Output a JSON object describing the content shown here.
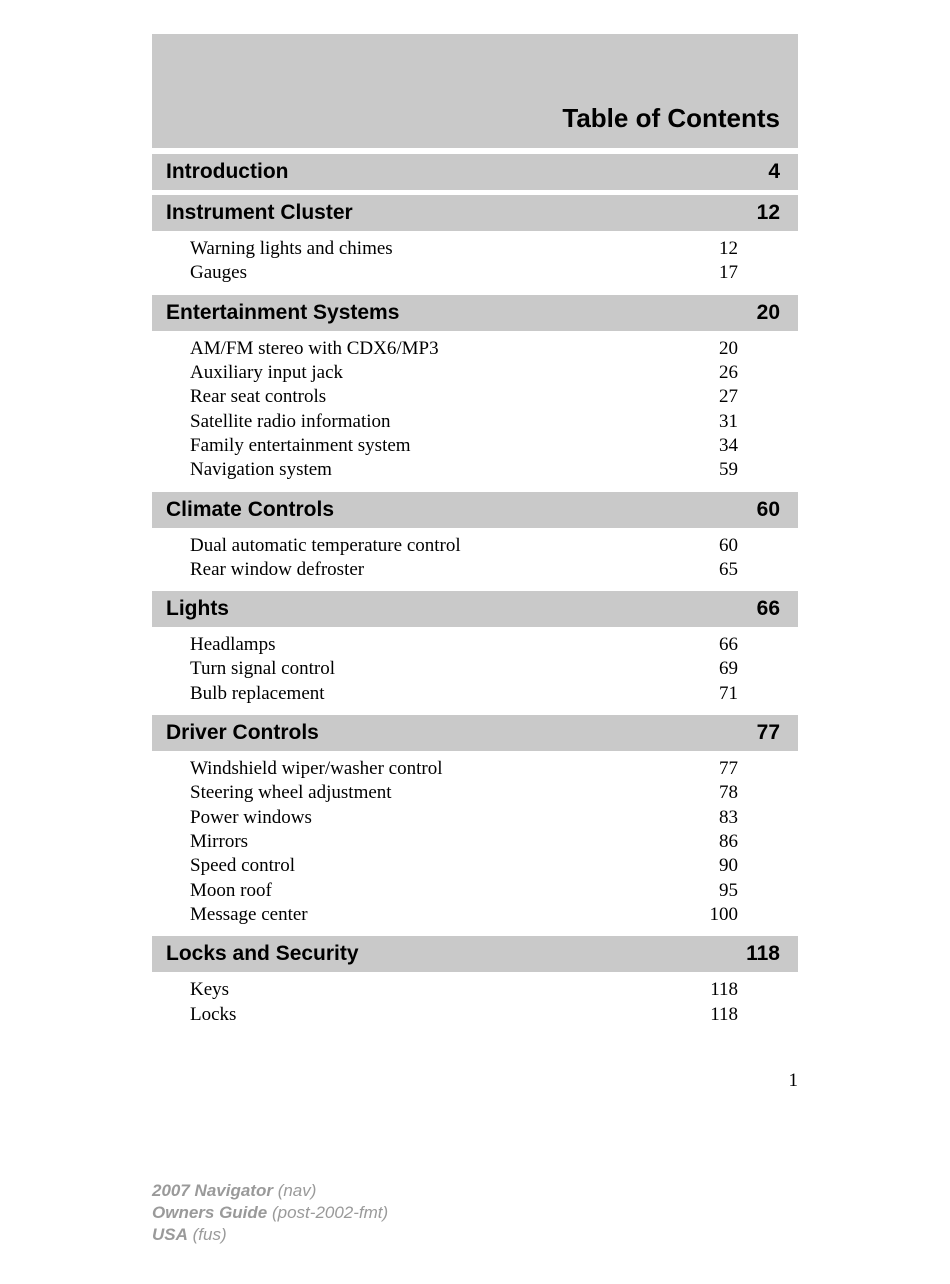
{
  "title": "Table of Contents",
  "page_number": "1",
  "colors": {
    "bar_bg": "#c9c9c9",
    "page_bg": "#ffffff",
    "text": "#000000",
    "footer_text": "#9a9a9a"
  },
  "sections": [
    {
      "title": "Introduction",
      "page": "4",
      "items": []
    },
    {
      "title": "Instrument Cluster",
      "page": "12",
      "items": [
        {
          "label": "Warning lights and chimes",
          "page": "12"
        },
        {
          "label": "Gauges",
          "page": "17"
        }
      ]
    },
    {
      "title": "Entertainment Systems",
      "page": "20",
      "items": [
        {
          "label": "AM/FM stereo with CDX6/MP3",
          "page": "20"
        },
        {
          "label": "Auxiliary input jack",
          "page": "26"
        },
        {
          "label": "Rear seat controls",
          "page": "27"
        },
        {
          "label": "Satellite radio information",
          "page": "31"
        },
        {
          "label": "Family entertainment system",
          "page": "34"
        },
        {
          "label": "Navigation system",
          "page": "59"
        }
      ]
    },
    {
      "title": "Climate Controls",
      "page": "60",
      "items": [
        {
          "label": "Dual automatic temperature control",
          "page": "60"
        },
        {
          "label": "Rear window defroster",
          "page": "65"
        }
      ]
    },
    {
      "title": "Lights",
      "page": "66",
      "items": [
        {
          "label": "Headlamps",
          "page": "66"
        },
        {
          "label": "Turn signal control",
          "page": "69"
        },
        {
          "label": "Bulb replacement",
          "page": "71"
        }
      ]
    },
    {
      "title": "Driver Controls",
      "page": "77",
      "items": [
        {
          "label": "Windshield wiper/washer control",
          "page": "77"
        },
        {
          "label": "Steering wheel adjustment",
          "page": "78"
        },
        {
          "label": "Power windows",
          "page": "83"
        },
        {
          "label": "Mirrors",
          "page": "86"
        },
        {
          "label": "Speed control",
          "page": "90"
        },
        {
          "label": "Moon roof",
          "page": "95"
        },
        {
          "label": "Message center",
          "page": "100"
        }
      ]
    },
    {
      "title": "Locks and Security",
      "page": "118",
      "items": [
        {
          "label": "Keys",
          "page": "118"
        },
        {
          "label": "Locks",
          "page": "118"
        }
      ]
    }
  ],
  "footer": {
    "line1_bold": "2007 Navigator",
    "line1_paren": "(nav)",
    "line2_bold": "Owners Guide",
    "line2_paren": "(post-2002-fmt)",
    "line3_bold": "USA",
    "line3_paren": "(fus)"
  }
}
